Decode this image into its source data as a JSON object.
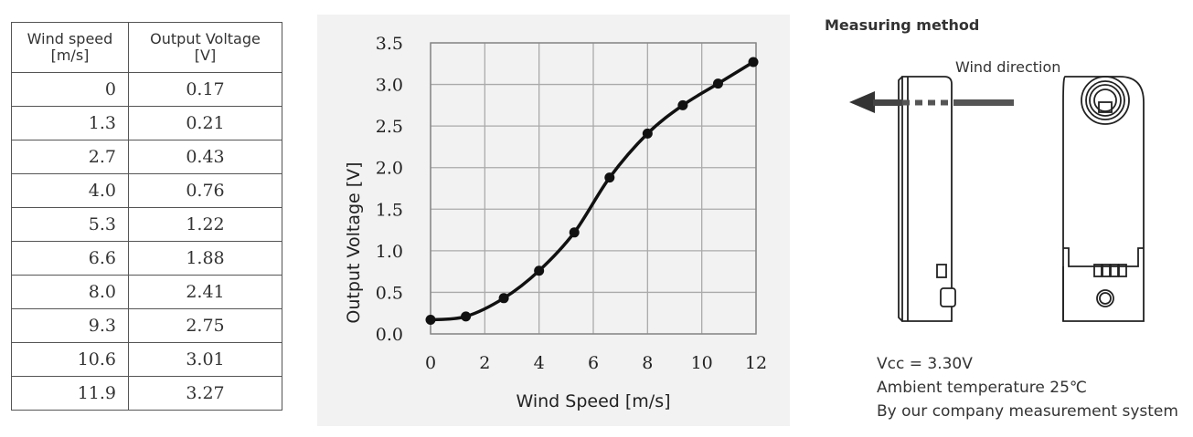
{
  "table": {
    "headers": [
      {
        "line1": "Wind speed",
        "line2": "[m/s]"
      },
      {
        "line1": "Output Voltage",
        "line2": "[V]"
      }
    ],
    "rows": [
      [
        "0",
        "0.17"
      ],
      [
        "1.3",
        "0.21"
      ],
      [
        "2.7",
        "0.43"
      ],
      [
        "4.0",
        "0.76"
      ],
      [
        "5.3",
        "1.22"
      ],
      [
        "6.6",
        "1.88"
      ],
      [
        "8.0",
        "2.41"
      ],
      [
        "9.3",
        "2.75"
      ],
      [
        "10.6",
        "3.01"
      ],
      [
        "11.9",
        "3.27"
      ]
    ]
  },
  "chart_data": {
    "type": "line",
    "x": [
      0,
      1.3,
      2.7,
      4.0,
      5.3,
      6.6,
      8.0,
      9.3,
      10.6,
      11.9
    ],
    "y": [
      0.17,
      0.21,
      0.43,
      0.76,
      1.22,
      1.88,
      2.41,
      2.75,
      3.01,
      3.27
    ],
    "xlabel": "Wind Speed [m/s]",
    "ylabel": "Output Voltage [V]",
    "xlim": [
      0,
      12
    ],
    "ylim": [
      0,
      3.5
    ],
    "x_ticks": [
      "0",
      "2",
      "4",
      "6",
      "8",
      "10",
      "12"
    ],
    "y_ticks": [
      "0.0",
      "0.5",
      "1.0",
      "1.5",
      "2.0",
      "2.5",
      "3.0",
      "3.5"
    ],
    "grid": true,
    "colors": {
      "line": "#111111",
      "grid": "#aaaaaa",
      "background": "#f2f2f2"
    }
  },
  "method": {
    "title": "Measuring method",
    "wind_direction": "Wind direction",
    "notes": [
      "Vcc = 3.30V",
      "Ambient temperature 25℃",
      "By our company measurement system"
    ]
  }
}
